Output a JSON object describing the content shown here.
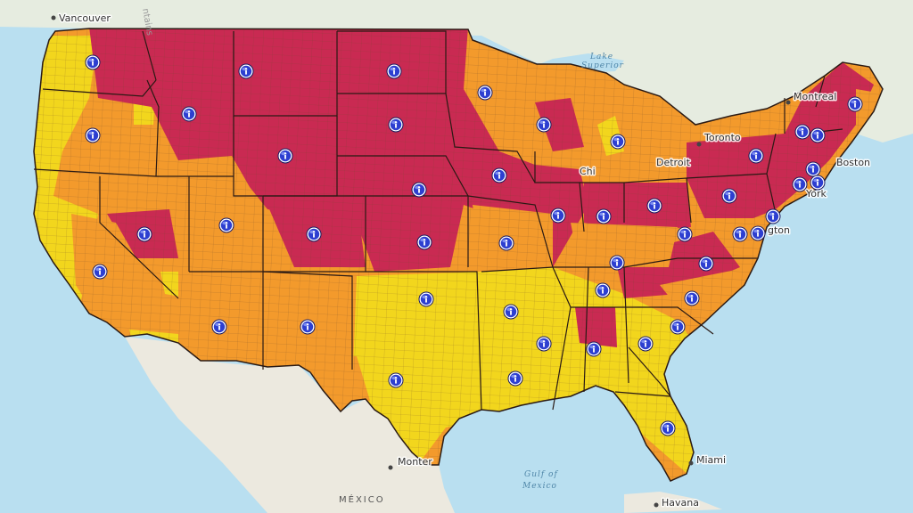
{
  "colors": {
    "ocean": "#b9dff0",
    "land": "#ece9df",
    "canada": "#e6ece0",
    "outline_state": "#2a1a14",
    "county_line": "#6d4a2c",
    "level_low": "#f2d61d",
    "level_mid": "#f39a2c",
    "level_high": "#c92a52",
    "pin_fill": "#2d3fd0",
    "pin_ring": "#ffffff"
  },
  "labels": {
    "vancouver": "Vancouver",
    "montreal": "Montreal",
    "toronto": "Toronto",
    "detroit": "Detroit",
    "chicago": "Chi",
    "boston": "Boston",
    "newyork": "York",
    "washington": "gton",
    "miami": "Miami",
    "havana": "Havana",
    "monterrey": "Monter",
    "mexico": "MÉXICO",
    "lake_superior_1": "Lake",
    "lake_superior_2": "Superior",
    "gulf_1": "Gulf of",
    "gulf_2": "Mexico",
    "mountains": "ntains"
  },
  "info_pin_icon": "info-icon",
  "info_pin_count": 47
}
